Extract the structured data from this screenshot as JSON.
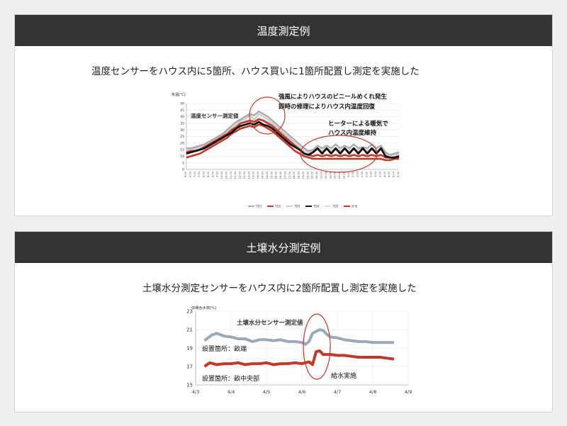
{
  "sections": [
    {
      "title": "温度測定例",
      "description": "温度センサーをハウス内に5箇所、ハウス買いに1箇所配置し測定を実施した"
    },
    {
      "title": "土壌水分測定例",
      "description": "土壌水分測定センサーをハウス内に2箇所配置し測定を実施した"
    }
  ],
  "chart_data": [
    {
      "type": "line",
      "title": "温度センサー測定値",
      "ylabel": "気温[℃]",
      "ylim": [
        0,
        50
      ],
      "yticks": [
        0,
        5,
        10,
        15,
        20,
        25,
        30,
        35,
        40,
        45,
        50
      ],
      "categories": [
        "6:00",
        "6:30",
        "7:00",
        "7:30",
        "8:00",
        "8:30",
        "9:00",
        "9:30",
        "10:00",
        "10:30",
        "11:00",
        "11:30",
        "12:00",
        "12:30",
        "13:00",
        "13:30",
        "14:00",
        "14:30",
        "15:00",
        "15:30",
        "16:00",
        "16:30",
        "17:00",
        "17:30",
        "18:00",
        "18:30",
        "19:00",
        "19:30",
        "20:00",
        "20:30",
        "21:00",
        "21:30",
        "22:00",
        "22:30",
        "23:00",
        "23:30",
        "0:00",
        "0:30",
        "1:00",
        "1:30",
        "2:00",
        "2:30",
        "3:00",
        "3:30",
        "4:00",
        "4:30",
        "5:00",
        "5:30"
      ],
      "series": [
        {
          "name": "TD1",
          "color": "#aaaaaa",
          "values": [
            16,
            16,
            17,
            18,
            19,
            21,
            23,
            25,
            27,
            30,
            33,
            36,
            38,
            40,
            42,
            41,
            44,
            42,
            40,
            37,
            34,
            31,
            28,
            25,
            22,
            19,
            16,
            14,
            15,
            18,
            16,
            18,
            16,
            19,
            16,
            18,
            16,
            19,
            16,
            17,
            16,
            19,
            16,
            18,
            13,
            11,
            12,
            13
          ]
        },
        {
          "name": "TD2",
          "color": "#c0392b",
          "values": [
            13,
            14,
            14,
            15,
            17,
            19,
            21,
            23,
            25,
            27,
            30,
            32,
            35,
            36,
            37,
            36,
            38,
            37,
            35,
            33,
            30,
            27,
            24,
            21,
            18,
            15,
            12,
            11,
            10,
            11,
            10,
            11,
            10,
            11,
            10,
            11,
            10,
            11,
            10,
            11,
            10,
            11,
            10,
            11,
            9,
            9,
            9,
            9
          ]
        },
        {
          "name": "TD3",
          "color": "#cccccc",
          "values": [
            15,
            15,
            16,
            17,
            18,
            20,
            22,
            24,
            26,
            29,
            31,
            34,
            37,
            38,
            41,
            38,
            42,
            40,
            38,
            35,
            32,
            29,
            26,
            23,
            20,
            17,
            14,
            13,
            14,
            16,
            14,
            16,
            14,
            16,
            14,
            16,
            14,
            16,
            14,
            16,
            14,
            16,
            14,
            16,
            12,
            11,
            11,
            12
          ]
        },
        {
          "name": "TD4",
          "color": "#111111",
          "values": [
            12,
            13,
            14,
            15,
            16,
            18,
            20,
            22,
            24,
            26,
            28,
            31,
            33,
            34,
            35,
            34,
            36,
            34,
            33,
            31,
            28,
            25,
            22,
            19,
            17,
            15,
            12,
            11,
            13,
            16,
            12,
            16,
            12,
            16,
            12,
            16,
            12,
            16,
            12,
            16,
            12,
            16,
            12,
            16,
            10,
            9,
            9,
            10
          ]
        },
        {
          "name": "TD5",
          "color": "#dddddd",
          "values": [
            14,
            14,
            15,
            16,
            17,
            19,
            21,
            23,
            25,
            27,
            30,
            33,
            35,
            36,
            38,
            37,
            39,
            38,
            36,
            34,
            31,
            28,
            25,
            22,
            19,
            16,
            13,
            12,
            13,
            15,
            13,
            15,
            13,
            15,
            13,
            15,
            13,
            15,
            13,
            15,
            13,
            15,
            13,
            15,
            11,
            10,
            10,
            11
          ]
        },
        {
          "name": "外気",
          "color": "#c0392b",
          "values": [
            9,
            10,
            11,
            12,
            14,
            16,
            18,
            20,
            22,
            24,
            27,
            29,
            31,
            32,
            33,
            32,
            34,
            33,
            31,
            29,
            26,
            23,
            20,
            17,
            14,
            12,
            10,
            9,
            8,
            8,
            8,
            8,
            8,
            8,
            8,
            8,
            8,
            8,
            8,
            8,
            8,
            8,
            8,
            8,
            7,
            7,
            8,
            8
          ]
        }
      ],
      "annotations": [
        "強風によりハウスのビニールめくれ発生",
        "即時の修理によりハウス内温度回復",
        "ヒーターによる暖気で",
        "ハウス内温度維持"
      ]
    },
    {
      "type": "line",
      "title": "土壌水分センサー測定値",
      "ylabel": "体積含水率[%]",
      "ylim": [
        15,
        23
      ],
      "yticks": [
        15,
        17,
        19,
        21,
        23
      ],
      "xticks": [
        "4/3",
        "4/4",
        "4/5",
        "4/6",
        "4/7",
        "4/8",
        "4/9"
      ],
      "xlim": [
        0,
        6
      ],
      "series": [
        {
          "name": "設置箇所：畝端",
          "color": "#9aa8b8",
          "x": [
            0.25,
            0.45,
            0.6,
            0.8,
            1.0,
            1.2,
            1.4,
            1.6,
            1.8,
            2.0,
            2.2,
            2.4,
            2.6,
            2.8,
            3.0,
            3.1,
            3.2,
            3.3,
            3.4,
            3.5,
            3.6,
            3.7,
            3.8,
            4.0,
            4.2,
            4.4,
            4.6,
            4.8,
            5.0,
            5.2,
            5.4,
            5.6
          ],
          "y": [
            19.8,
            20.4,
            20.6,
            20.3,
            20.2,
            20.0,
            20.0,
            19.7,
            19.9,
            19.9,
            19.8,
            19.9,
            19.7,
            19.7,
            19.6,
            19.4,
            19.7,
            20.6,
            20.8,
            21.0,
            20.9,
            20.5,
            20.2,
            20.1,
            19.9,
            19.8,
            19.7,
            19.7,
            19.6,
            19.6,
            19.6,
            19.6
          ]
        },
        {
          "name": "設置箇所：畝中央部",
          "color": "#c0392b",
          "x": [
            0.25,
            0.4,
            0.6,
            0.8,
            1.0,
            1.2,
            1.4,
            1.6,
            1.8,
            2.0,
            2.2,
            2.4,
            2.6,
            2.8,
            3.0,
            3.2,
            3.3,
            3.4,
            3.5,
            3.6,
            3.8,
            4.0,
            4.2,
            4.4,
            4.6,
            4.8,
            5.0,
            5.2,
            5.4,
            5.6
          ],
          "y": [
            17.0,
            17.4,
            17.2,
            17.3,
            17.3,
            17.4,
            17.2,
            17.3,
            17.3,
            17.4,
            17.2,
            17.3,
            17.3,
            17.4,
            17.3,
            17.5,
            17.2,
            18.6,
            18.7,
            18.3,
            18.3,
            18.2,
            18.2,
            18.1,
            18.0,
            18.0,
            18.0,
            18.0,
            17.9,
            17.8
          ]
        }
      ],
      "annotations": [
        "給水実施"
      ]
    }
  ]
}
